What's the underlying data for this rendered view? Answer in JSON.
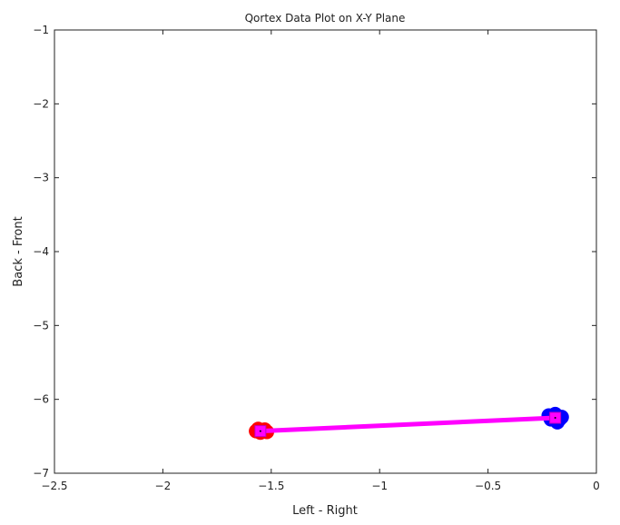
{
  "chart_data": {
    "type": "line",
    "title": "Qortex Data Plot on X-Y Plane",
    "xlabel": "Left - Right",
    "ylabel": "Back - Front",
    "xlim": [
      -2.5,
      0
    ],
    "ylim": [
      -7,
      -1
    ],
    "xticks": [
      "-2.5",
      "-2",
      "-1.5",
      "-1",
      "-0.5",
      "0"
    ],
    "yticks": [
      "-1",
      "-2",
      "-3",
      "-4",
      "-5",
      "-6",
      "-7"
    ],
    "grid": false,
    "series": [
      {
        "color": "#ff0000",
        "type": "scatter",
        "points": [
          [
            -1.57,
            -6.43
          ],
          [
            -1.55,
            -6.45
          ],
          [
            -1.53,
            -6.41
          ],
          [
            -1.56,
            -6.4
          ],
          [
            -1.52,
            -6.44
          ]
        ]
      },
      {
        "color": "#0000ff",
        "type": "scatter",
        "points": [
          [
            -0.22,
            -6.22
          ],
          [
            -0.19,
            -6.2
          ],
          [
            -0.17,
            -6.27
          ],
          [
            -0.18,
            -6.31
          ],
          [
            -0.21,
            -6.27
          ],
          [
            -0.16,
            -6.24
          ]
        ]
      },
      {
        "color": "#ff00ff",
        "type": "line",
        "marker": "square",
        "points": [
          [
            -1.55,
            -6.43
          ],
          [
            -0.19,
            -6.25
          ]
        ]
      }
    ]
  }
}
